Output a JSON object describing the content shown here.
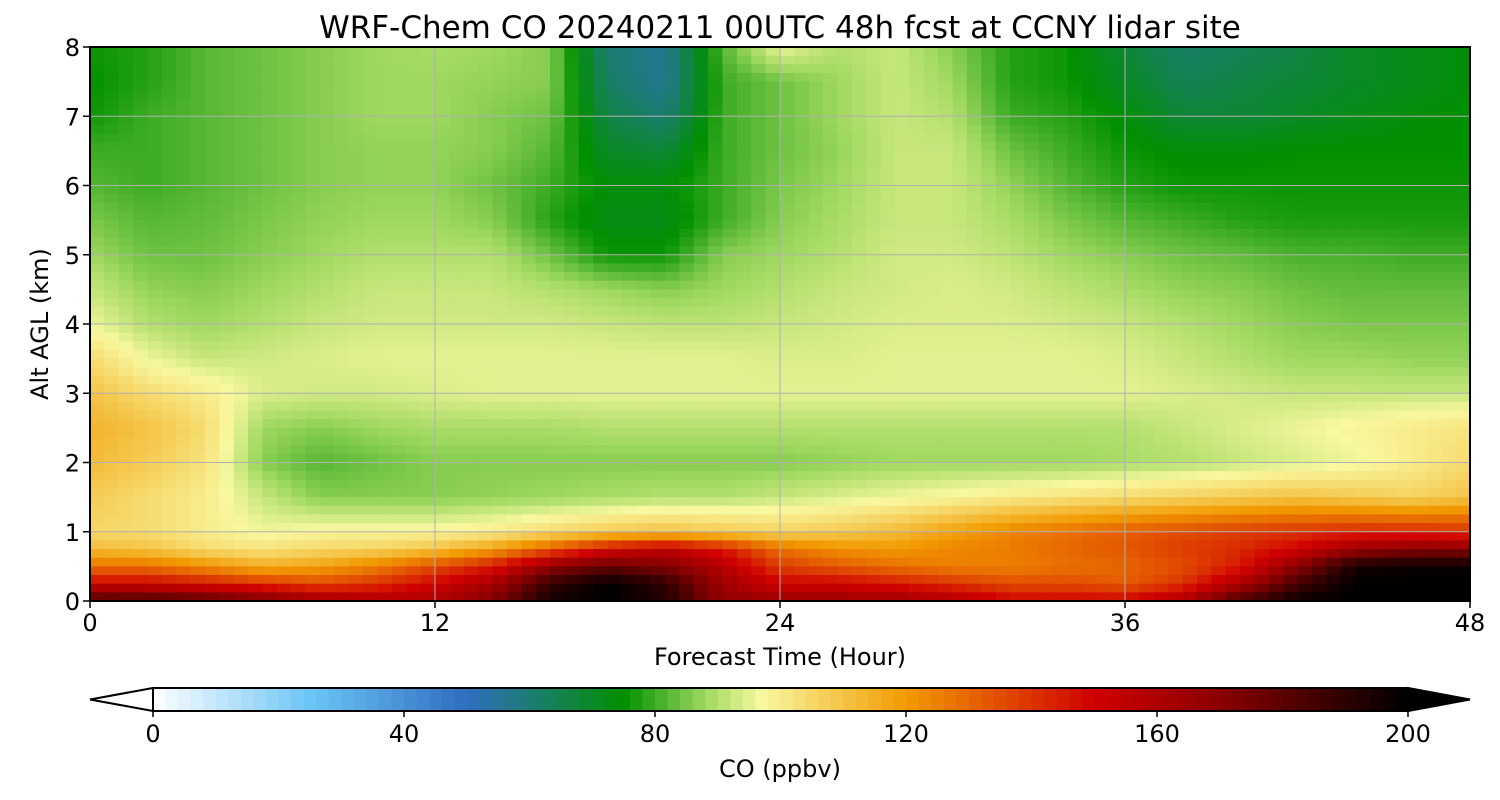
{
  "chart_data": {
    "type": "heatmap",
    "title": "WRF-Chem CO  20240211 00UTC 48h fcst at CCNY lidar site",
    "xlabel": "Forecast Time (Hour)",
    "ylabel": "Alt AGL (km)",
    "x_ticks": [
      "0",
      "12",
      "24",
      "36",
      "48"
    ],
    "y_ticks": [
      "0",
      "1",
      "2",
      "3",
      "4",
      "5",
      "6",
      "7",
      "8"
    ],
    "xlim": [
      0,
      48
    ],
    "ylim": [
      0,
      8
    ],
    "grid": true,
    "colorbar": {
      "label": "CO  (ppbv)",
      "ticks": [
        "0",
        "40",
        "80",
        "120",
        "160",
        "200"
      ],
      "range": [
        0,
        200
      ],
      "extend": "both",
      "stops": [
        {
          "v": 0,
          "c": "#ffffff"
        },
        {
          "v": 25,
          "c": "#6cc5f5"
        },
        {
          "v": 50,
          "c": "#2f6ec0"
        },
        {
          "v": 75,
          "c": "#009000"
        },
        {
          "v": 88,
          "c": "#9fd860"
        },
        {
          "v": 97,
          "c": "#f8f8a0"
        },
        {
          "v": 120,
          "c": "#f29a00"
        },
        {
          "v": 150,
          "c": "#d00000"
        },
        {
          "v": 170,
          "c": "#8a0000"
        },
        {
          "v": 200,
          "c": "#000000"
        }
      ]
    },
    "x_hours": [
      0,
      2,
      4,
      6,
      8,
      10,
      12,
      14,
      16,
      18,
      20,
      22,
      24,
      26,
      28,
      30,
      32,
      34,
      36,
      38,
      40,
      42,
      44,
      46,
      48
    ],
    "z_km": [
      0,
      0.25,
      0.5,
      0.75,
      1,
      1.5,
      2,
      2.5,
      3,
      3.5,
      4,
      4.5,
      5,
      5.5,
      6,
      6.5,
      7,
      7.5,
      8
    ],
    "values": [
      [
        185,
        185,
        182,
        175,
        165,
        160,
        160,
        172,
        196,
        200,
        192,
        168,
        166,
        166,
        165,
        160,
        150,
        150,
        150,
        160,
        185,
        198,
        200,
        200,
        200
      ],
      [
        150,
        150,
        145,
        140,
        135,
        140,
        150,
        162,
        188,
        200,
        190,
        164,
        150,
        150,
        145,
        140,
        135,
        135,
        132,
        140,
        160,
        185,
        200,
        200,
        200
      ],
      [
        128,
        128,
        122,
        115,
        118,
        125,
        135,
        145,
        168,
        178,
        172,
        158,
        138,
        132,
        128,
        125,
        125,
        128,
        130,
        135,
        145,
        170,
        195,
        198,
        198
      ],
      [
        112,
        110,
        104,
        102,
        105,
        106,
        110,
        118,
        132,
        148,
        155,
        145,
        128,
        122,
        120,
        124,
        126,
        130,
        133,
        138,
        142,
        150,
        165,
        170,
        170
      ],
      [
        105,
        104,
        100,
        96,
        98,
        98,
        98,
        100,
        104,
        108,
        110,
        108,
        106,
        108,
        112,
        118,
        124,
        128,
        132,
        135,
        138,
        140,
        142,
        142,
        140
      ],
      [
        108,
        104,
        100,
        92,
        86,
        86,
        86,
        87,
        88,
        89,
        90,
        90,
        92,
        94,
        96,
        98,
        100,
        102,
        104,
        106,
        108,
        110,
        108,
        106,
        110
      ],
      [
        112,
        108,
        102,
        86,
        82,
        84,
        86,
        86,
        86,
        86,
        86,
        86,
        86,
        87,
        88,
        88,
        88,
        88,
        89,
        90,
        92,
        94,
        96,
        100,
        104
      ],
      [
        114,
        110,
        104,
        88,
        86,
        88,
        89,
        89,
        89,
        90,
        90,
        90,
        90,
        90,
        90,
        90,
        90,
        90,
        90,
        92,
        94,
        96,
        98,
        100,
        102
      ],
      [
        110,
        104,
        100,
        94,
        93,
        93,
        94,
        95,
        95,
        95,
        95,
        95,
        95,
        95,
        95,
        95,
        95,
        95,
        95,
        94,
        93,
        92,
        92,
        92,
        92
      ],
      [
        104,
        96,
        92,
        93,
        94,
        95,
        95,
        95,
        95,
        95,
        95,
        95,
        94,
        94,
        95,
        95,
        95,
        95,
        94,
        92,
        90,
        88,
        88,
        87,
        87
      ],
      [
        96,
        90,
        88,
        90,
        92,
        93,
        93,
        93,
        93,
        92,
        91,
        91,
        92,
        93,
        94,
        94,
        94,
        93,
        92,
        90,
        88,
        86,
        85,
        85,
        85
      ],
      [
        92,
        87,
        86,
        88,
        90,
        92,
        92,
        92,
        90,
        88,
        86,
        88,
        90,
        92,
        93,
        94,
        93,
        91,
        89,
        87,
        86,
        84,
        83,
        83,
        83
      ],
      [
        88,
        84,
        84,
        86,
        88,
        90,
        90,
        90,
        84,
        76,
        76,
        86,
        88,
        90,
        93,
        93,
        91,
        88,
        86,
        84,
        83,
        81,
        81,
        80,
        80
      ],
      [
        85,
        82,
        83,
        85,
        87,
        88,
        88,
        86,
        78,
        72,
        72,
        80,
        86,
        89,
        92,
        92,
        89,
        85,
        82,
        80,
        78,
        77,
        77,
        77,
        77
      ],
      [
        82,
        80,
        82,
        84,
        86,
        87,
        87,
        84,
        80,
        74,
        74,
        80,
        85,
        88,
        92,
        92,
        87,
        82,
        78,
        76,
        76,
        76,
        76,
        76,
        76
      ],
      [
        80,
        80,
        82,
        84,
        86,
        87,
        87,
        86,
        82,
        70,
        68,
        80,
        84,
        87,
        92,
        92,
        84,
        80,
        76,
        74,
        74,
        75,
        75,
        75,
        75
      ],
      [
        76,
        80,
        82,
        84,
        86,
        88,
        88,
        86,
        84,
        66,
        60,
        80,
        84,
        88,
        92,
        90,
        80,
        78,
        74,
        68,
        68,
        70,
        72,
        74,
        75
      ],
      [
        75,
        78,
        82,
        84,
        86,
        88,
        88,
        87,
        86,
        62,
        56,
        80,
        84,
        88,
        92,
        88,
        78,
        76,
        70,
        64,
        66,
        68,
        70,
        72,
        74
      ],
      [
        76,
        78,
        82,
        84,
        86,
        88,
        89,
        88,
        86,
        60,
        56,
        82,
        96,
        90,
        92,
        86,
        78,
        76,
        68,
        62,
        64,
        66,
        70,
        72,
        74
      ]
    ]
  }
}
